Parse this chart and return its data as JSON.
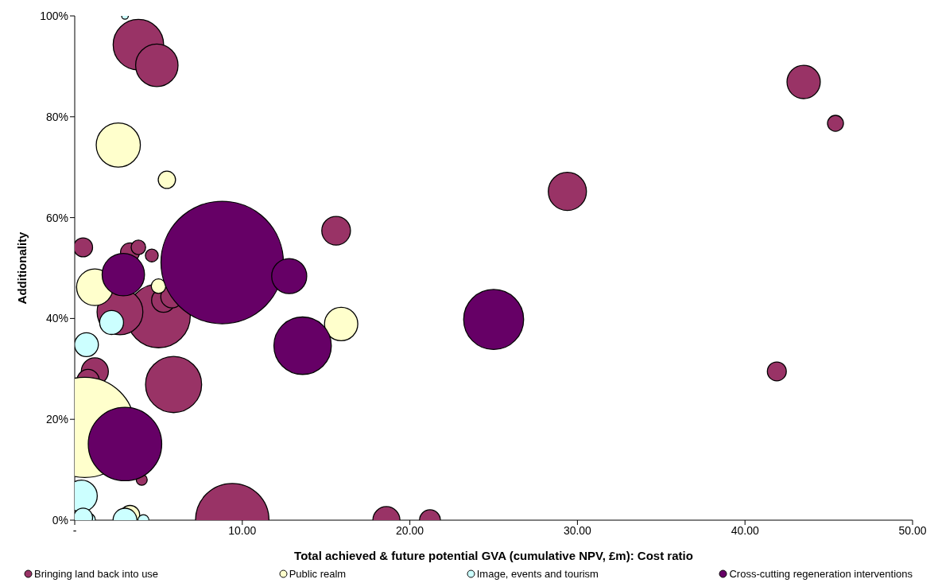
{
  "chart_data": {
    "type": "bubble",
    "xlabel": "Total achieved & future potential GVA (cumulative NPV, £m): Cost ratio",
    "ylabel": "Additionality",
    "xlim": [
      0,
      50
    ],
    "xticks": [
      {
        "value": 0,
        "label": "-"
      },
      {
        "value": 10,
        "label": "10.00"
      },
      {
        "value": 20,
        "label": "20.00"
      },
      {
        "value": 30,
        "label": "30.00"
      },
      {
        "value": 40,
        "label": "40.00"
      },
      {
        "value": 50,
        "label": "50.00"
      }
    ],
    "ylim": [
      0,
      100
    ],
    "yticks": [
      {
        "value": 0,
        "label": "0%"
      },
      {
        "value": 20,
        "label": "20%"
      },
      {
        "value": 40,
        "label": "40%"
      },
      {
        "value": 60,
        "label": "60%"
      },
      {
        "value": 80,
        "label": "80%"
      },
      {
        "value": 100,
        "label": "100%"
      }
    ],
    "grid": false,
    "legend": "bottom",
    "series": [
      {
        "name": "Bringing land back into use",
        "color": "#993366",
        "x": [
          3.8,
          4.9,
          43.5,
          45.4,
          29.4,
          15.6,
          0.5,
          3.3,
          3.8,
          4.6,
          5.0,
          2.7,
          5.3,
          5.8,
          5.9,
          1.2,
          0.8,
          4.0,
          9.4,
          18.6,
          21.2,
          41.9
        ],
        "values": [
          94.3,
          90.2,
          86.9,
          78.7,
          65.2,
          57.4,
          54.1,
          53.1,
          54.1,
          52.5,
          40.5,
          41.3,
          43.6,
          44.3,
          26.9,
          29.5,
          27.7,
          8.0,
          0,
          0,
          0,
          29.5
        ],
        "sizes": [
          0.17,
          0.12,
          0.074,
          0.017,
          0.097,
          0.055,
          0.024,
          0.024,
          0.014,
          0.011,
          0.27,
          0.14,
          0.038,
          0.033,
          0.21,
          0.049,
          0.033,
          0.008,
          0.36,
          0.049,
          0.029,
          0.024
        ]
      },
      {
        "name": "Public realm",
        "color": "#ffffcc",
        "x": [
          2.6,
          5.5,
          1.2,
          5.0,
          15.9,
          0.6,
          3.3
        ],
        "values": [
          74.4,
          67.5,
          46.2,
          46.4,
          38.9,
          18.4,
          1.0
        ],
        "sizes": [
          0.13,
          0.02,
          0.089,
          0.014,
          0.074,
          0.67,
          0.025
        ]
      },
      {
        "name": "Image, events and tourism",
        "color": "#ccffff",
        "x": [
          3.0,
          2.2,
          0.7,
          0.4,
          0.8,
          3.0,
          4.1,
          0.5
        ],
        "values": [
          100,
          39.2,
          34.8,
          4.8,
          0,
          0,
          0,
          0.5
        ],
        "sizes": [
          0.003,
          0.038,
          0.038,
          0.067,
          0.014,
          0.038,
          0.008,
          0.024
        ]
      },
      {
        "name": "Cross-cutting regeneration interventions",
        "color": "#660066",
        "x": [
          8.8,
          2.9,
          12.8,
          13.6,
          25.0,
          3.0
        ],
        "values": [
          51.1,
          48.7,
          48.4,
          34.6,
          39.8,
          15.1
        ],
        "sizes": [
          1,
          0.12,
          0.082,
          0.22,
          0.24,
          0.36
        ]
      }
    ]
  }
}
